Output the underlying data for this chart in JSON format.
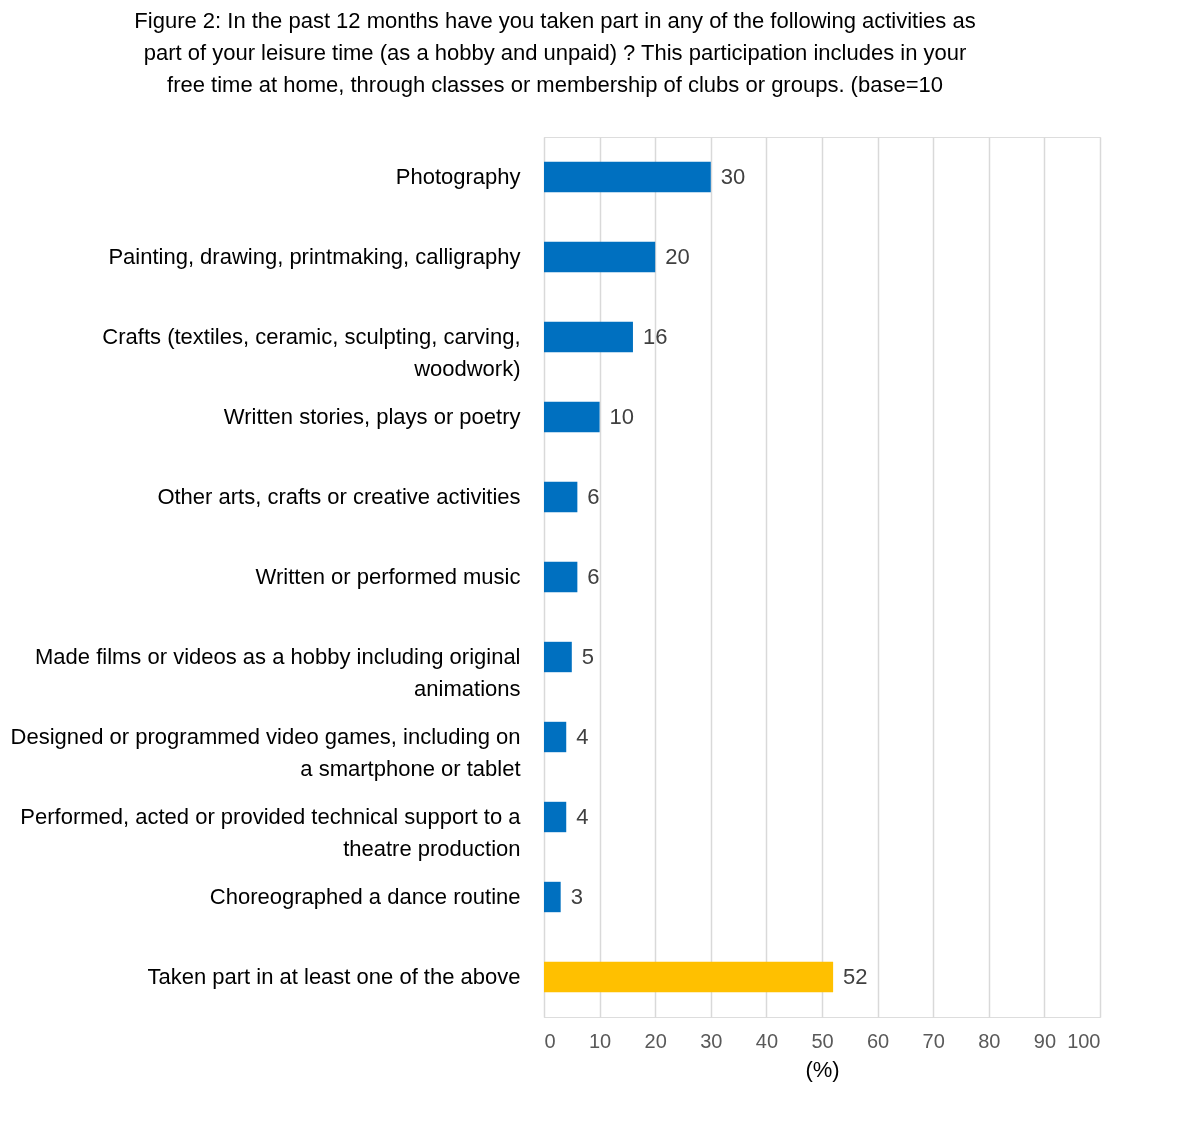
{
  "chart_data": {
    "type": "bar",
    "orientation": "horizontal",
    "title": "Figure 2: In the past 12 months have you taken part in any of the following activities as part of your leisure time (as a hobby and unpaid) ? This participation includes in your free time at home, through classes or membership of clubs or groups. (base=10",
    "categories": [
      "Photography",
      "Painting, drawing, printmaking, calligraphy",
      "Crafts (textiles, ceramic, sculpting, carving,\nwoodwork)",
      "Written stories, plays or poetry",
      "Other arts, crafts or creative activities",
      "Written or performed music",
      "Made films or videos as a hobby including original\nanimations",
      "Designed or programmed video games, including on\na smartphone or tablet",
      "Performed, acted or provided technical support to a\ntheatre production",
      "Choreographed a dance routine",
      "Taken part in at least one of the above"
    ],
    "values": [
      30,
      20,
      16,
      10,
      6,
      6,
      5,
      4,
      4,
      3,
      52
    ],
    "colors": [
      "#0070c0",
      "#0070c0",
      "#0070c0",
      "#0070c0",
      "#0070c0",
      "#0070c0",
      "#0070c0",
      "#0070c0",
      "#0070c0",
      "#0070c0",
      "#ffc000"
    ],
    "xlim": [
      0,
      100
    ],
    "xticks": [
      0,
      10,
      20,
      30,
      40,
      50,
      60,
      70,
      80,
      90,
      100
    ],
    "xlabel": "(%)",
    "grid": "x",
    "data_labels": true
  }
}
